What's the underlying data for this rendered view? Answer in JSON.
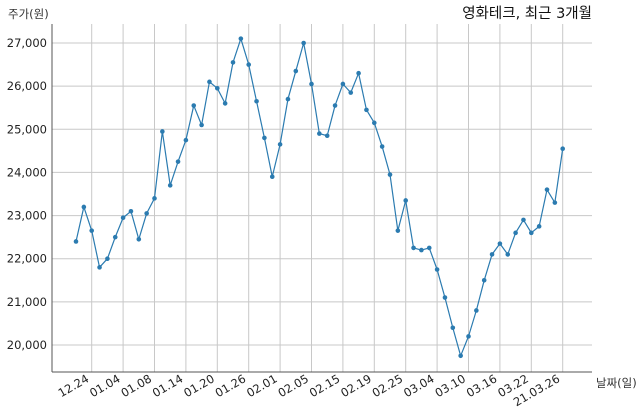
{
  "chart_data": {
    "type": "line",
    "title": "영화테크, 최근 3개월",
    "ylabel": "주가(원)",
    "xlabel": "날짜(일)",
    "ylim": [
      19400,
      27500
    ],
    "yticks": [
      20000,
      21000,
      22000,
      23000,
      24000,
      25000,
      26000,
      27000
    ],
    "ytick_labels": [
      "20,000",
      "21,000",
      "22,000",
      "23,000",
      "24,000",
      "25,000",
      "26,000",
      "27,000"
    ],
    "x_tick_indices": [
      2,
      6,
      10,
      14,
      18,
      22,
      26,
      30,
      34,
      38,
      42,
      46,
      50,
      54,
      58,
      62
    ],
    "x_tick_labels": [
      "12.24",
      "01.04",
      "01.08",
      "01.14",
      "01.20",
      "01.26",
      "02.01",
      "02.05",
      "02.15",
      "02.19",
      "02.25",
      "03.04",
      "03.10",
      "03.16",
      "03.22",
      "21.03.26"
    ],
    "grid": true,
    "color": "#2b7bb0",
    "series": [
      {
        "values": [
          22400,
          23200,
          22650,
          21800,
          22000,
          22500,
          22950,
          23100,
          22450,
          23050,
          23400,
          24950,
          23700,
          24250,
          24750,
          25550,
          25100,
          26100,
          25950,
          25600,
          26550,
          27100,
          26500,
          25650,
          24800,
          23900,
          24650,
          25700,
          26350,
          27000,
          26050,
          24900,
          24850,
          25550,
          26050,
          25850,
          26300,
          25450,
          25150,
          24600,
          23950,
          22650,
          23350,
          22250,
          22200,
          22250,
          21750,
          21100,
          20400,
          19750,
          20200,
          20800,
          21500,
          22100,
          22350,
          22100,
          22600,
          22900,
          22600,
          22750,
          23600,
          23300,
          24550
        ]
      }
    ]
  }
}
